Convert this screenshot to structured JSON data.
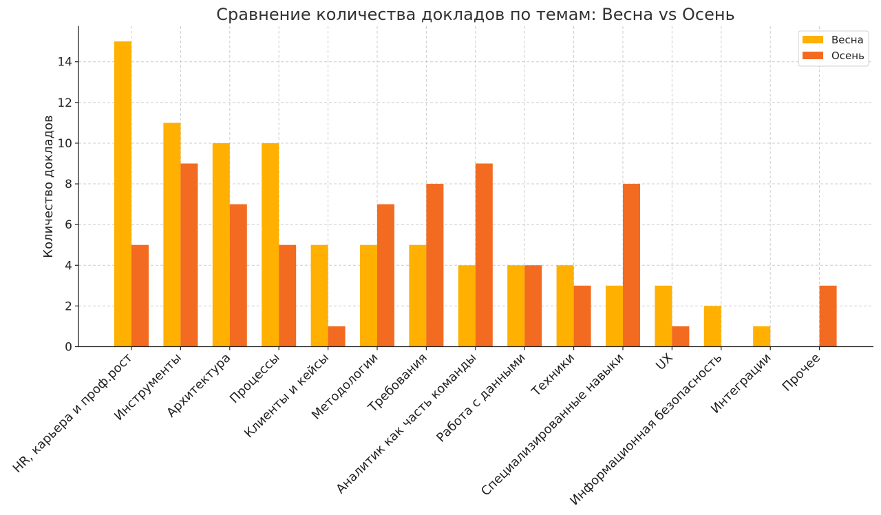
{
  "chart_data": {
    "type": "bar",
    "title": "Сравнение количества докладов по темам: Весна vs Осень",
    "xlabel": "",
    "ylabel": "Количество докладов",
    "ylim": [
      0,
      15.75
    ],
    "yticks": [
      0,
      2,
      4,
      6,
      8,
      10,
      12,
      14
    ],
    "grid": true,
    "legend_position": "top-right",
    "categories": [
      "HR, карьера и проф.рост",
      "Инструменты",
      "Архитектура",
      "Процессы",
      "Клиенты и кейсы",
      "Методологии",
      "Требования",
      "Аналитик как часть команды",
      "Работа с данными",
      "Техники",
      "Специализированные навыки",
      "UX",
      "Информационная безопасность",
      "Интеграции",
      "Прочее"
    ],
    "series": [
      {
        "name": "Весна",
        "color": "#FFB000",
        "values": [
          15,
          11,
          10,
          10,
          5,
          5,
          5,
          4,
          4,
          4,
          3,
          3,
          2,
          1,
          0
        ]
      },
      {
        "name": "Осень",
        "color": "#F26B21",
        "values": [
          5,
          9,
          7,
          5,
          1,
          7,
          8,
          9,
          4,
          3,
          8,
          1,
          0,
          0,
          3
        ]
      }
    ]
  }
}
